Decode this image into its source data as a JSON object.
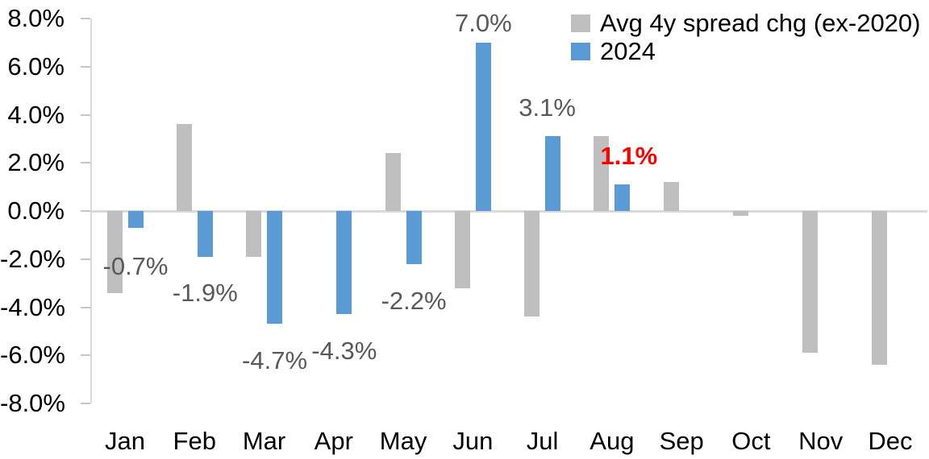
{
  "chart_data": {
    "type": "bar",
    "title": "",
    "xlabel": "",
    "ylabel": "",
    "categories": [
      "Jan",
      "Feb",
      "Mar",
      "Apr",
      "May",
      "Jun",
      "Jul",
      "Aug",
      "Sep",
      "Oct",
      "Nov",
      "Dec"
    ],
    "series": [
      {
        "name": "Avg 4y spread chg (ex-2020)",
        "color": "#BFBFBF",
        "values": [
          -3.4,
          3.6,
          -1.9,
          0.0,
          2.4,
          -3.2,
          -4.4,
          3.1,
          1.2,
          -0.2,
          -5.9,
          -6.4
        ]
      },
      {
        "name": "2024",
        "color": "#5B9BD5",
        "values": [
          -0.7,
          -1.9,
          -4.7,
          -4.3,
          -2.2,
          7.0,
          3.1,
          1.1,
          null,
          null,
          null,
          null
        ]
      }
    ],
    "ylim": [
      -8,
      8
    ],
    "ytick_labels": [
      "8.0%",
      "6.0%",
      "4.0%",
      "2.0%",
      "0.0%",
      "-2.0%",
      "-4.0%",
      "-6.0%",
      "-8.0%"
    ],
    "grid": false,
    "legend_position": "top-right",
    "data_labels": [
      {
        "category": "Jan",
        "series": "2024",
        "text": "-0.7%",
        "highlight": false
      },
      {
        "category": "Feb",
        "series": "2024",
        "text": "-1.9%",
        "highlight": false
      },
      {
        "category": "Mar",
        "series": "2024",
        "text": "-4.7%",
        "highlight": false
      },
      {
        "category": "Apr",
        "series": "2024",
        "text": "-4.3%",
        "highlight": false
      },
      {
        "category": "May",
        "series": "2024",
        "text": "-2.2%",
        "highlight": false
      },
      {
        "category": "Jun",
        "series": "2024",
        "text": "7.0%",
        "highlight": false
      },
      {
        "category": "Jul",
        "series": "2024",
        "text": "3.1%",
        "highlight": false
      },
      {
        "category": "Aug",
        "series": "2024",
        "text": "1.1%",
        "highlight": true
      }
    ],
    "colors": {
      "data_label": "#595959",
      "highlight_label": "#FF0000",
      "axis_line": "#D9D9D9",
      "tick_mark": "#C6C6C6",
      "tick_label": "#000000"
    }
  }
}
